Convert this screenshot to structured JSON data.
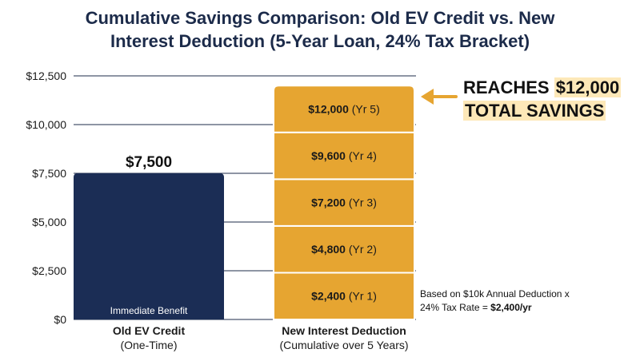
{
  "title": {
    "line1": "Cumulative Savings Comparison: Old EV Credit vs. New",
    "line2": "Interest Deduction (5-Year Loan, 24% Tax Bracket)"
  },
  "colors": {
    "old_bar": "#1b2d55",
    "new_bar": "#e6a531",
    "gridline": "#1c2b4a",
    "arrow": "#e6a531",
    "highlight": "#fde8b8"
  },
  "chart_data": {
    "type": "bar",
    "ylim": [
      0,
      12500
    ],
    "yticks": [
      0,
      2500,
      5000,
      7500,
      10000,
      12500
    ],
    "ytick_labels": [
      "$0",
      "$2,500",
      "$5,000",
      "$7,500",
      "$10,000",
      "$12,500"
    ],
    "grid": true,
    "categories": [
      {
        "name": "Old EV Credit",
        "sub": "(One-Time)"
      },
      {
        "name": "New Interest Deduction",
        "sub": "(Cumulative over 5 Years)"
      }
    ],
    "old_bar": {
      "value": 7500,
      "value_label": "$7,500",
      "note": "Immediate Benefit"
    },
    "new_bar_segments": [
      {
        "value": 2400,
        "cumulative": 2400,
        "amount": "$2,400",
        "year": "(Yr 1)"
      },
      {
        "value": 2400,
        "cumulative": 4800,
        "amount": "$4,800",
        "year": "(Yr 2)"
      },
      {
        "value": 2400,
        "cumulative": 7200,
        "amount": "$7,200",
        "year": "(Yr 3)"
      },
      {
        "value": 2400,
        "cumulative": 9600,
        "amount": "$9,600",
        "year": "(Yr 4)"
      },
      {
        "value": 2400,
        "cumulative": 12000,
        "amount": "$12,000",
        "year": "(Yr 5)"
      }
    ]
  },
  "callout": {
    "prefix": "REACHES",
    "amount": "$12,000",
    "line2": "TOTAL SAVINGS"
  },
  "footnote": {
    "line1": "Based on $10k Annual Deduction x",
    "line2_prefix": "24% Tax Rate = ",
    "line2_bold": "$2,400/yr"
  }
}
